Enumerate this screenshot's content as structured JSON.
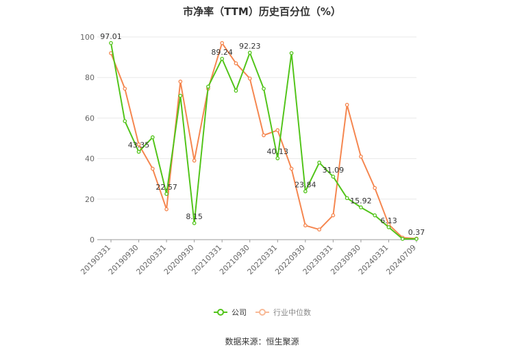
{
  "chart_data": {
    "type": "line",
    "title": "市净率（TTM）历史百分位（%）",
    "source": "数据来源：恒生聚源",
    "x": [
      "20190331",
      "20190630",
      "20190930",
      "20191231",
      "20200331",
      "20200630",
      "20200930",
      "20201231",
      "20210331",
      "20210630",
      "20210930",
      "20211231",
      "20220331",
      "20220630",
      "20220930",
      "20221231",
      "20230331",
      "20230630",
      "20230930",
      "20231231",
      "20240331",
      "20240630",
      "20240709"
    ],
    "x_tick_labels": [
      "20190331",
      "20190930",
      "20200331",
      "20200930",
      "20210331",
      "20210930",
      "20220331",
      "20220930",
      "20230331",
      "20230930",
      "20240331",
      "20240709"
    ],
    "ylim": [
      0,
      100
    ],
    "y_ticks": [
      0,
      20,
      40,
      60,
      80,
      100
    ],
    "grid": true,
    "legend_position": "bottom",
    "series": [
      {
        "name": "公司",
        "color": "#52c41a",
        "values": [
          97.01,
          58.5,
          43.35,
          50.5,
          22.57,
          71.0,
          8.15,
          75.5,
          89.24,
          73.5,
          92.23,
          74.5,
          40.13,
          92.0,
          23.84,
          38.0,
          31.09,
          20.5,
          15.92,
          12.0,
          6.13,
          0.37,
          0.37
        ],
        "data_labels": [
          {
            "index": 0,
            "text": "97.01"
          },
          {
            "index": 2,
            "text": "43.35"
          },
          {
            "index": 4,
            "text": "22.57"
          },
          {
            "index": 6,
            "text": "8.15"
          },
          {
            "index": 8,
            "text": "89.24"
          },
          {
            "index": 10,
            "text": "92.23"
          },
          {
            "index": 12,
            "text": "40.13"
          },
          {
            "index": 14,
            "text": "23.84"
          },
          {
            "index": 16,
            "text": "31.09"
          },
          {
            "index": 18,
            "text": "15.92"
          },
          {
            "index": 20,
            "text": "6.13"
          },
          {
            "index": 22,
            "text": "0.37"
          }
        ]
      },
      {
        "name": "行业中位数",
        "color": "#f5864f",
        "values": [
          92.0,
          74.5,
          47.0,
          35.0,
          15.0,
          78.0,
          39.0,
          74.5,
          97.0,
          87.0,
          79.5,
          51.5,
          54.0,
          35.0,
          7.0,
          5.0,
          12.0,
          66.5,
          41.0,
          25.5,
          7.5,
          1.0,
          0.5
        ]
      }
    ]
  }
}
